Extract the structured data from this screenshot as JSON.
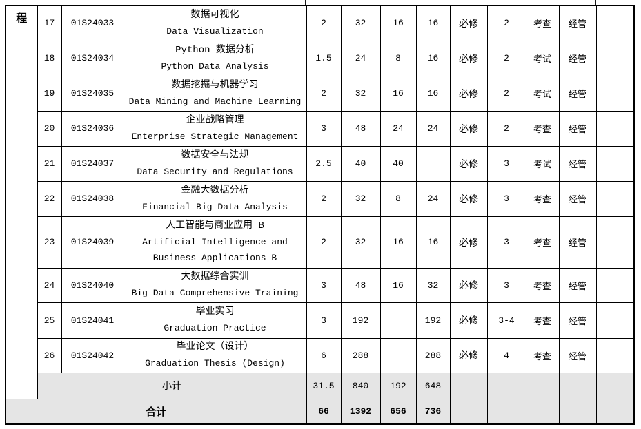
{
  "side_label": "程",
  "rows": [
    {
      "no": "17",
      "code": "01S24033",
      "name_zh": "数据可视化",
      "name_en": "Data Visualization",
      "credit": "2",
      "total_hours": "32",
      "theory_hours": "16",
      "practice_hours": "16",
      "type": "必修",
      "semester": "2",
      "assessment": "考查",
      "department": "经管",
      "remark": ""
    },
    {
      "no": "18",
      "code": "01S24034",
      "name_zh": "Python 数据分析",
      "name_en": "Python Data Analysis",
      "credit": "1.5",
      "total_hours": "24",
      "theory_hours": "8",
      "practice_hours": "16",
      "type": "必修",
      "semester": "2",
      "assessment": "考试",
      "department": "经管",
      "remark": ""
    },
    {
      "no": "19",
      "code": "01S24035",
      "name_zh": "数据挖掘与机器学习",
      "name_en": "Data Mining and Machine Learning",
      "credit": "2",
      "total_hours": "32",
      "theory_hours": "16",
      "practice_hours": "16",
      "type": "必修",
      "semester": "2",
      "assessment": "考试",
      "department": "经管",
      "remark": ""
    },
    {
      "no": "20",
      "code": "01S24036",
      "name_zh": "企业战略管理",
      "name_en": "Enterprise Strategic Management",
      "credit": "3",
      "total_hours": "48",
      "theory_hours": "24",
      "practice_hours": "24",
      "type": "必修",
      "semester": "2",
      "assessment": "考查",
      "department": "经管",
      "remark": ""
    },
    {
      "no": "21",
      "code": "01S24037",
      "name_zh": "数据安全与法规",
      "name_en": "Data Security and Regulations",
      "credit": "2.5",
      "total_hours": "40",
      "theory_hours": "40",
      "practice_hours": "",
      "type": "必修",
      "semester": "3",
      "assessment": "考试",
      "department": "经管",
      "remark": ""
    },
    {
      "no": "22",
      "code": "01S24038",
      "name_zh": "金融大数据分析",
      "name_en": "Financial Big Data Analysis",
      "credit": "2",
      "total_hours": "32",
      "theory_hours": "8",
      "practice_hours": "24",
      "type": "必修",
      "semester": "3",
      "assessment": "考查",
      "department": "经管",
      "remark": ""
    },
    {
      "no": "23",
      "code": "01S24039",
      "name_zh": "人工智能与商业应用 B",
      "name_en": "Artificial Intelligence and Business Applications B",
      "credit": "2",
      "total_hours": "32",
      "theory_hours": "16",
      "practice_hours": "16",
      "type": "必修",
      "semester": "3",
      "assessment": "考查",
      "department": "经管",
      "remark": ""
    },
    {
      "no": "24",
      "code": "01S24040",
      "name_zh": "大数据综合实训",
      "name_en": "Big Data Comprehensive Training",
      "credit": "3",
      "total_hours": "48",
      "theory_hours": "16",
      "practice_hours": "32",
      "type": "必修",
      "semester": "3",
      "assessment": "考查",
      "department": "经管",
      "remark": ""
    },
    {
      "no": "25",
      "code": "01S24041",
      "name_zh": "毕业实习",
      "name_en": "Graduation Practice",
      "credit": "3",
      "total_hours": "192",
      "theory_hours": "",
      "practice_hours": "192",
      "type": "必修",
      "semester": "3-4",
      "assessment": "考查",
      "department": "经管",
      "remark": ""
    },
    {
      "no": "26",
      "code": "01S24042",
      "name_zh": "毕业论文（设计）",
      "name_en": "Graduation Thesis (Design)",
      "credit": "6",
      "total_hours": "288",
      "theory_hours": "",
      "practice_hours": "288",
      "type": "必修",
      "semester": "4",
      "assessment": "考查",
      "department": "经管",
      "remark": ""
    }
  ],
  "subtotal": {
    "label": "小计",
    "credit": "31.5",
    "total_hours": "840",
    "theory_hours": "192",
    "practice_hours": "648"
  },
  "grand_total": {
    "label": "合计",
    "credit": "66",
    "total_hours": "1392",
    "theory_hours": "656",
    "practice_hours": "736"
  },
  "colors": {
    "grid": "#000000",
    "summary_row_bg": "#e5e5e5",
    "page_bg": "#ffffff"
  }
}
